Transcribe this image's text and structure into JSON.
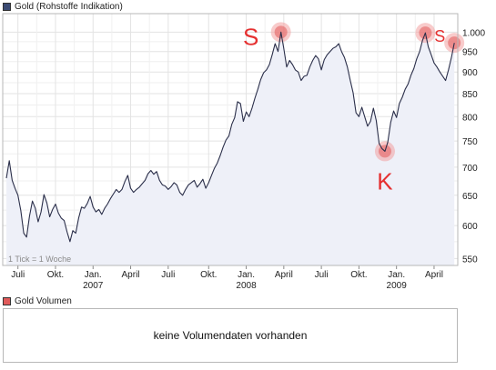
{
  "chart_title": "Gold (Rohstoffe Indikation)",
  "volume_title": "Gold Volumen",
  "tick_note": "1 Tick = 1 Woche",
  "no_volume_text": "keine Volumendaten vorhanden",
  "colors": {
    "price_legend": "#3b4a73",
    "volume_legend": "#e05a5a",
    "line": "#2b2f4a",
    "fill": "#eef0f8",
    "grid": "#e3e3e3",
    "annotation": "#e53030"
  },
  "annotations": [
    {
      "letter": "S",
      "label_size": "large"
    },
    {
      "letter": "S",
      "label_size": "small"
    },
    {
      "letter": "K",
      "label_size": "large"
    }
  ],
  "chart_data": {
    "type": "line",
    "title": "Gold (Rohstoffe Indikation)",
    "yscale": "log",
    "ylim": [
      540,
      1050
    ],
    "y_ticks": [
      "550",
      "600",
      "650",
      "700",
      "750",
      "800",
      "850",
      "900",
      "950",
      "1.000"
    ],
    "y_tick_values": [
      550,
      600,
      650,
      700,
      750,
      800,
      850,
      900,
      950,
      1000
    ],
    "x_ticks": [
      {
        "label": "Juli",
        "year": "",
        "week": 4
      },
      {
        "label": "Okt.",
        "year": "",
        "week": 17
      },
      {
        "label": "Jan.",
        "year": "2007",
        "week": 30
      },
      {
        "label": "April",
        "year": "",
        "week": 43
      },
      {
        "label": "Juli",
        "year": "",
        "week": 56
      },
      {
        "label": "Okt.",
        "year": "",
        "week": 70
      },
      {
        "label": "Jan.",
        "year": "2008",
        "week": 83
      },
      {
        "label": "April",
        "year": "",
        "week": 96
      },
      {
        "label": "Juli",
        "year": "",
        "week": 109
      },
      {
        "label": "Okt.",
        "year": "",
        "week": 122
      },
      {
        "label": "Jan.",
        "year": "2009",
        "week": 135
      },
      {
        "label": "April",
        "year": "",
        "week": 148
      }
    ],
    "x_count": 155,
    "grid": true,
    "series": [
      {
        "values": [
          680,
          712,
          676,
          662,
          650,
          624,
          588,
          582,
          615,
          640,
          628,
          606,
          622,
          651,
          637,
          614,
          626,
          635,
          620,
          612,
          608,
          590,
          575,
          592,
          588,
          612,
          630,
          628,
          636,
          648,
          630,
          622,
          626,
          618,
          628,
          635,
          644,
          652,
          660,
          655,
          660,
          674,
          685,
          662,
          655,
          660,
          664,
          670,
          676,
          688,
          694,
          687,
          692,
          676,
          668,
          666,
          660,
          665,
          672,
          668,
          655,
          650,
          660,
          668,
          672,
          676,
          664,
          670,
          678,
          662,
          672,
          685,
          698,
          708,
          722,
          738,
          752,
          760,
          784,
          798,
          832,
          828,
          790,
          810,
          800,
          818,
          840,
          860,
          882,
          898,
          905,
          918,
          942,
          970,
          950,
          1000,
          958,
          912,
          928,
          918,
          905,
          900,
          880,
          890,
          892,
          912,
          928,
          940,
          932,
          905,
          930,
          942,
          950,
          958,
          962,
          970,
          950,
          935,
          912,
          880,
          852,
          808,
          800,
          820,
          800,
          780,
          790,
          818,
          792,
          745,
          735,
          730,
          748,
          788,
          812,
          798,
          828,
          842,
          860,
          872,
          892,
          908,
          932,
          950,
          978,
          998,
          962,
          942,
          922,
          912,
          900,
          890,
          880,
          905,
          935,
          972
        ]
      }
    ]
  }
}
